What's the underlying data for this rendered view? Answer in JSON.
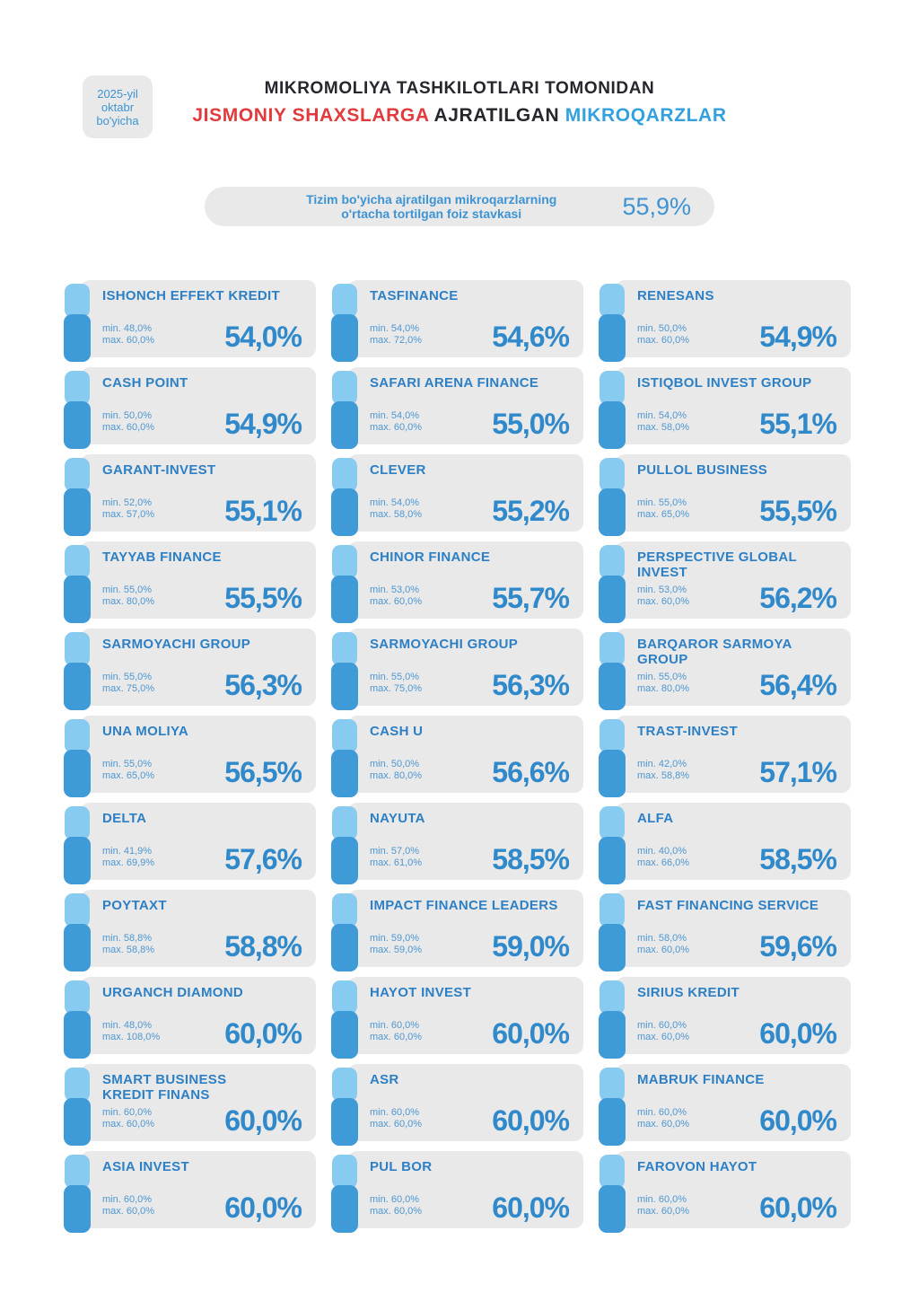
{
  "colors": {
    "accent-blue": "#2f89ca",
    "name-blue": "#2d80c5",
    "light-blue-tab": "#87ccf0",
    "dark-blue-tab": "#3f9ad8",
    "minmax-blue": "#4e97d1",
    "title-dark": "#26262e",
    "title-red": "#e23b3e",
    "title-light-blue": "#33a1e0",
    "pill-blue": "#3e94d3",
    "card-bg": "#e9e9e9"
  },
  "header": {
    "badge_text": "2025-yil\noktabr\nbo'yicha",
    "title_line1": "MIKROMOLIYA TASHKILOTLARI TOMONIDAN",
    "title_line2_red": "JISMONIY SHAXSLARGA",
    "title_line2_dark": "AJRATILGAN",
    "title_line2_blue": "MIKROQARZLAR"
  },
  "summary": {
    "label": "Tizim bo'yicha ajratilgan mikroqarzlarning\no'rtacha tortilgan foiz stavkasi",
    "value": "55,9%"
  },
  "cards": [
    {
      "name": "ISHONCH EFFEKT KREDIT",
      "min": "min. 48,0%",
      "max": "max. 60,0%",
      "value": "54,0%"
    },
    {
      "name": "TASFINANCE",
      "min": "min. 54,0%",
      "max": "max. 72,0%",
      "value": "54,6%"
    },
    {
      "name": "RENESANS",
      "min": "min. 50,0%",
      "max": "max. 60,0%",
      "value": "54,9%"
    },
    {
      "name": "CASH POINT",
      "min": "min. 50,0%",
      "max": "max. 60,0%",
      "value": "54,9%"
    },
    {
      "name": "SAFARI ARENA FINANCE",
      "min": "min. 54,0%",
      "max": "max. 60,0%",
      "value": "55,0%"
    },
    {
      "name": "ISTIQBOL INVEST GROUP",
      "min": "min. 54,0%",
      "max": "max. 58,0%",
      "value": "55,1%"
    },
    {
      "name": "GARANT-INVEST",
      "min": "min. 52,0%",
      "max": "max. 57,0%",
      "value": "55,1%"
    },
    {
      "name": "CLEVER",
      "min": "min. 54,0%",
      "max": "max. 58,0%",
      "value": "55,2%"
    },
    {
      "name": "PULLOL BUSINESS",
      "min": "min. 55,0%",
      "max": "max. 65,0%",
      "value": "55,5%"
    },
    {
      "name": "TAYYAB FINANCE",
      "min": "min. 55,0%",
      "max": "max. 80,0%",
      "value": "55,5%"
    },
    {
      "name": "CHINOR FINANCE",
      "min": "min. 53,0%",
      "max": "max. 60,0%",
      "value": "55,7%"
    },
    {
      "name": "PERSPECTIVE GLOBAL\nINVEST",
      "min": "min. 53,0%",
      "max": "max. 60,0%",
      "value": "56,2%"
    },
    {
      "name": "SARMOYACHI GROUP",
      "min": "min. 55,0%",
      "max": "max. 75,0%",
      "value": "56,3%"
    },
    {
      "name": "SARMOYACHI GROUP",
      "min": "min. 55,0%",
      "max": "max. 75,0%",
      "value": "56,3%"
    },
    {
      "name": "BARQAROR SARMOYA\nGROUP",
      "min": "min. 55,0%",
      "max": "max. 80,0%",
      "value": "56,4%"
    },
    {
      "name": "UNA MOLIYA",
      "min": "min. 55,0%",
      "max": "max. 65,0%",
      "value": "56,5%"
    },
    {
      "name": "CASH U",
      "min": "min. 50,0%",
      "max": "max. 80,0%",
      "value": "56,6%"
    },
    {
      "name": "TRAST-INVEST",
      "min": "min. 42,0%",
      "max": "max. 58,8%",
      "value": "57,1%"
    },
    {
      "name": "DELTA",
      "min": "min. 41,9%",
      "max": "max. 69,9%",
      "value": "57,6%"
    },
    {
      "name": "NAYUTA",
      "min": "min. 57,0%",
      "max": "max. 61,0%",
      "value": "58,5%"
    },
    {
      "name": "ALFA",
      "min": "min. 40,0%",
      "max": "max. 66,0%",
      "value": "58,5%"
    },
    {
      "name": "POYTAXT",
      "min": "min. 58,8%",
      "max": "max. 58,8%",
      "value": "58,8%"
    },
    {
      "name": "IMPACT FINANCE LEADERS",
      "min": "min. 59,0%",
      "max": "max. 59,0%",
      "value": "59,0%"
    },
    {
      "name": "FAST FINANCING SERVICE",
      "min": "min. 58,0%",
      "max": "max. 60,0%",
      "value": "59,6%"
    },
    {
      "name": "URGANCH DIAMOND",
      "min": "min. 48,0%",
      "max": "max. 108,0%",
      "value": "60,0%"
    },
    {
      "name": "HAYOT INVEST",
      "min": "min. 60,0%",
      "max": "max. 60,0%",
      "value": "60,0%"
    },
    {
      "name": "SIRIUS KREDIT",
      "min": "min. 60,0%",
      "max": "max. 60,0%",
      "value": "60,0%"
    },
    {
      "name": "SMART BUSINESS\nKREDIT FINANS",
      "min": "min. 60,0%",
      "max": "max. 60,0%",
      "value": "60,0%"
    },
    {
      "name": "ASR",
      "min": "min. 60,0%",
      "max": "max. 60,0%",
      "value": "60,0%"
    },
    {
      "name": "MABRUK FINANCE",
      "min": "min. 60,0%",
      "max": "max. 60,0%",
      "value": "60,0%"
    },
    {
      "name": "ASIA INVEST",
      "min": "min. 60,0%",
      "max": "max. 60,0%",
      "value": "60,0%"
    },
    {
      "name": "PUL BOR",
      "min": "min. 60,0%",
      "max": "max. 60,0%",
      "value": "60,0%"
    },
    {
      "name": "FAROVON HAYOT",
      "min": "min. 60,0%",
      "max": "max. 60,0%",
      "value": "60,0%"
    }
  ],
  "chart_data": {
    "type": "table",
    "title": "MIKROMOLIYA TASHKILOTLARI TOMONIDAN JISMONIY SHAXSLARGA AJRATILGAN MIKROQARZLAR",
    "subtitle": "2025-yil oktabr bo'yicha",
    "system_weighted_avg_rate_pct": 55.9,
    "columns": [
      "organization",
      "min_rate_pct",
      "max_rate_pct",
      "weighted_avg_rate_pct"
    ],
    "rows": [
      [
        "ISHONCH EFFEKT KREDIT",
        48.0,
        60.0,
        54.0
      ],
      [
        "TASFINANCE",
        54.0,
        72.0,
        54.6
      ],
      [
        "RENESANS",
        50.0,
        60.0,
        54.9
      ],
      [
        "CASH POINT",
        50.0,
        60.0,
        54.9
      ],
      [
        "SAFARI ARENA FINANCE",
        54.0,
        60.0,
        55.0
      ],
      [
        "ISTIQBOL INVEST GROUP",
        54.0,
        58.0,
        55.1
      ],
      [
        "GARANT-INVEST",
        52.0,
        57.0,
        55.1
      ],
      [
        "CLEVER",
        54.0,
        58.0,
        55.2
      ],
      [
        "PULLOL BUSINESS",
        55.0,
        65.0,
        55.5
      ],
      [
        "TAYYAB FINANCE",
        55.0,
        80.0,
        55.5
      ],
      [
        "CHINOR FINANCE",
        53.0,
        60.0,
        55.7
      ],
      [
        "PERSPECTIVE GLOBAL INVEST",
        53.0,
        60.0,
        56.2
      ],
      [
        "SARMOYACHI GROUP",
        55.0,
        75.0,
        56.3
      ],
      [
        "SARMOYACHI GROUP",
        55.0,
        75.0,
        56.3
      ],
      [
        "BARQAROR SARMOYA GROUP",
        55.0,
        80.0,
        56.4
      ],
      [
        "UNA MOLIYA",
        55.0,
        65.0,
        56.5
      ],
      [
        "CASH U",
        50.0,
        80.0,
        56.6
      ],
      [
        "TRAST-INVEST",
        42.0,
        58.8,
        57.1
      ],
      [
        "DELTA",
        41.9,
        69.9,
        57.6
      ],
      [
        "NAYUTA",
        57.0,
        61.0,
        58.5
      ],
      [
        "ALFA",
        40.0,
        66.0,
        58.5
      ],
      [
        "POYTAXT",
        58.8,
        58.8,
        58.8
      ],
      [
        "IMPACT FINANCE LEADERS",
        59.0,
        59.0,
        59.0
      ],
      [
        "FAST FINANCING SERVICE",
        58.0,
        60.0,
        59.6
      ],
      [
        "URGANCH DIAMOND",
        48.0,
        108.0,
        60.0
      ],
      [
        "HAYOT INVEST",
        60.0,
        60.0,
        60.0
      ],
      [
        "SIRIUS KREDIT",
        60.0,
        60.0,
        60.0
      ],
      [
        "SMART BUSINESS KREDIT FINANS",
        60.0,
        60.0,
        60.0
      ],
      [
        "ASR",
        60.0,
        60.0,
        60.0
      ],
      [
        "MABRUK FINANCE",
        60.0,
        60.0,
        60.0
      ],
      [
        "ASIA INVEST",
        60.0,
        60.0,
        60.0
      ],
      [
        "PUL BOR",
        60.0,
        60.0,
        60.0
      ],
      [
        "FAROVON HAYOT",
        60.0,
        60.0,
        60.0
      ]
    ]
  }
}
